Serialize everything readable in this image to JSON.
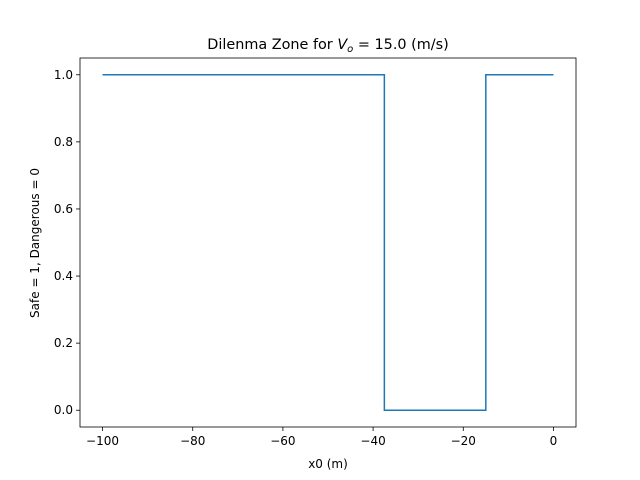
{
  "chart_data": {
    "type": "line",
    "title_prefix": "Dilenma Zone for ",
    "title_var": "V",
    "title_sub": "o",
    "title_suffix": " = 15.0 (m/s)",
    "xlabel": "x0 (m)",
    "ylabel": "Safe = 1, Dangerous = 0",
    "xlim": [
      -105,
      5
    ],
    "ylim": [
      -0.05,
      1.05
    ],
    "xticks": [
      -100,
      -80,
      -60,
      -40,
      -20,
      0
    ],
    "xtick_labels": [
      "−100",
      "−80",
      "−60",
      "−40",
      "−20",
      "0"
    ],
    "yticks": [
      0.0,
      0.2,
      0.4,
      0.6,
      0.8,
      1.0
    ],
    "ytick_labels": [
      "0.0",
      "0.2",
      "0.4",
      "0.6",
      "0.8",
      "1.0"
    ],
    "grid": false,
    "series": [
      {
        "color": "#1f77b4",
        "x": [
          -100,
          -37.5,
          -37.5,
          -15,
          -15,
          0
        ],
        "y": [
          1,
          1,
          0,
          0,
          1,
          1
        ]
      }
    ]
  }
}
